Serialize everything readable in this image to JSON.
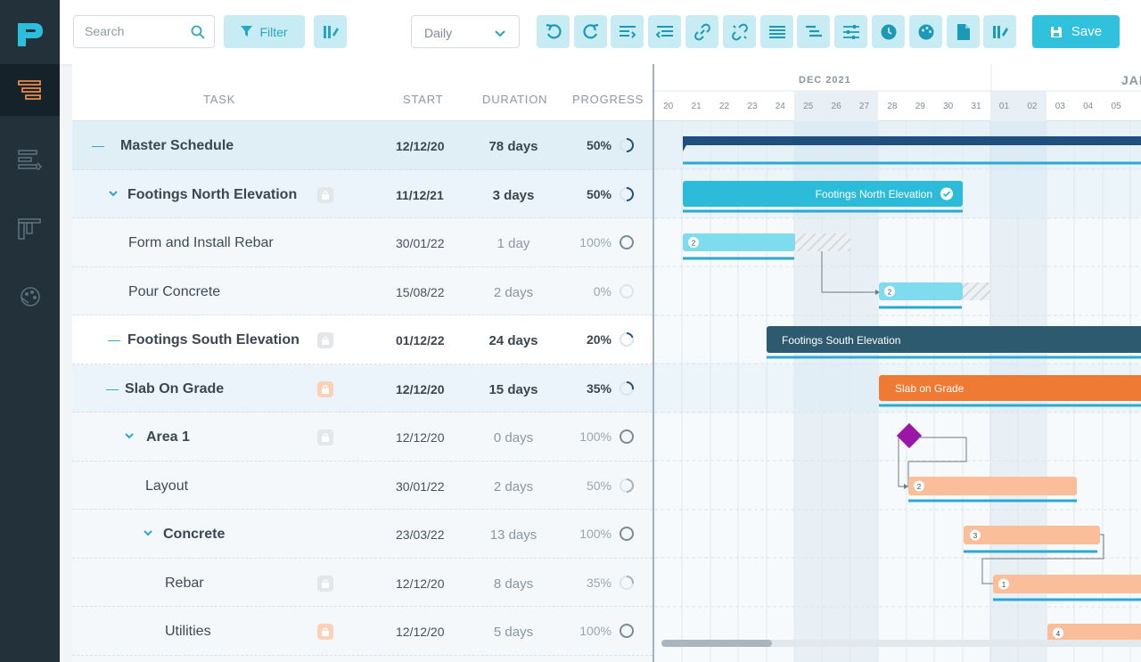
{
  "toolbar": {
    "search_placeholder": "Search",
    "filter_label": "Filter",
    "zoom_value": "Daily",
    "save_label": "Save"
  },
  "columns": {
    "task": "TASK",
    "start": "START",
    "duration": "DURATION",
    "progress": "PROGRESS"
  },
  "tasks": [
    {
      "name": "Master Schedule",
      "start": "12/12/20",
      "duration": "78 days",
      "progress": "50%",
      "progress_value": 0.5
    },
    {
      "name": "Footings North Elevation",
      "start": "11/12/21",
      "duration": "3 days",
      "progress": "50%",
      "progress_value": 0.5
    },
    {
      "name": "Form and Install Rebar",
      "start": "30/01/22",
      "duration": "1 day",
      "progress": "100%",
      "progress_value": 1.0
    },
    {
      "name": "Pour Concrete",
      "start": "15/08/22",
      "duration": "2 days",
      "progress": "0%",
      "progress_value": 0
    },
    {
      "name": "Footings South Elevation",
      "start": "01/12/22",
      "duration": "24 days",
      "progress": "20%",
      "progress_value": 0.2
    },
    {
      "name": "Slab On Grade",
      "start": "12/12/20",
      "duration": "15 days",
      "progress": "35%",
      "progress_value": 0.35
    },
    {
      "name": "Area 1",
      "start": "12/12/20",
      "duration": "0 days",
      "progress": "100%",
      "progress_value": 1.0
    },
    {
      "name": "Layout",
      "start": "30/01/22",
      "duration": "2 days",
      "progress": "50%",
      "progress_value": 0.5
    },
    {
      "name": "Concrete",
      "start": "23/03/22",
      "duration": "13 days",
      "progress": "100%",
      "progress_value": 1.0
    },
    {
      "name": "Rebar",
      "start": "12/12/20",
      "duration": "8 days",
      "progress": "35%",
      "progress_value": 0.35
    },
    {
      "name": "Utilities",
      "start": "12/12/20",
      "duration": "5 days",
      "progress": "100%",
      "progress_value": 1.0
    }
  ],
  "timeline": {
    "months": [
      "DEC 2021",
      "JAN"
    ],
    "days": [
      "20",
      "21",
      "22",
      "23",
      "24",
      "25",
      "26",
      "27",
      "28",
      "29",
      "30",
      "31",
      "01",
      "02",
      "03",
      "04",
      "05"
    ]
  },
  "bars": {
    "north": "Footings North Elevation",
    "south": "Footings South Elevation",
    "slab": "Slab on Grade",
    "badges": [
      "2",
      "2",
      "2",
      "3",
      "1",
      "4"
    ]
  },
  "colors": {
    "accent": "#30c1dc",
    "rail": "#22313a",
    "master": "#1e4f7e",
    "teal_bar": "#2cbcd9",
    "light_bar": "#7fdcef",
    "south_bar": "#2d5a6f",
    "slab_bar": "#ee7a33",
    "peach_bar": "#fbbe9a",
    "milestone": "#9b15a6"
  }
}
